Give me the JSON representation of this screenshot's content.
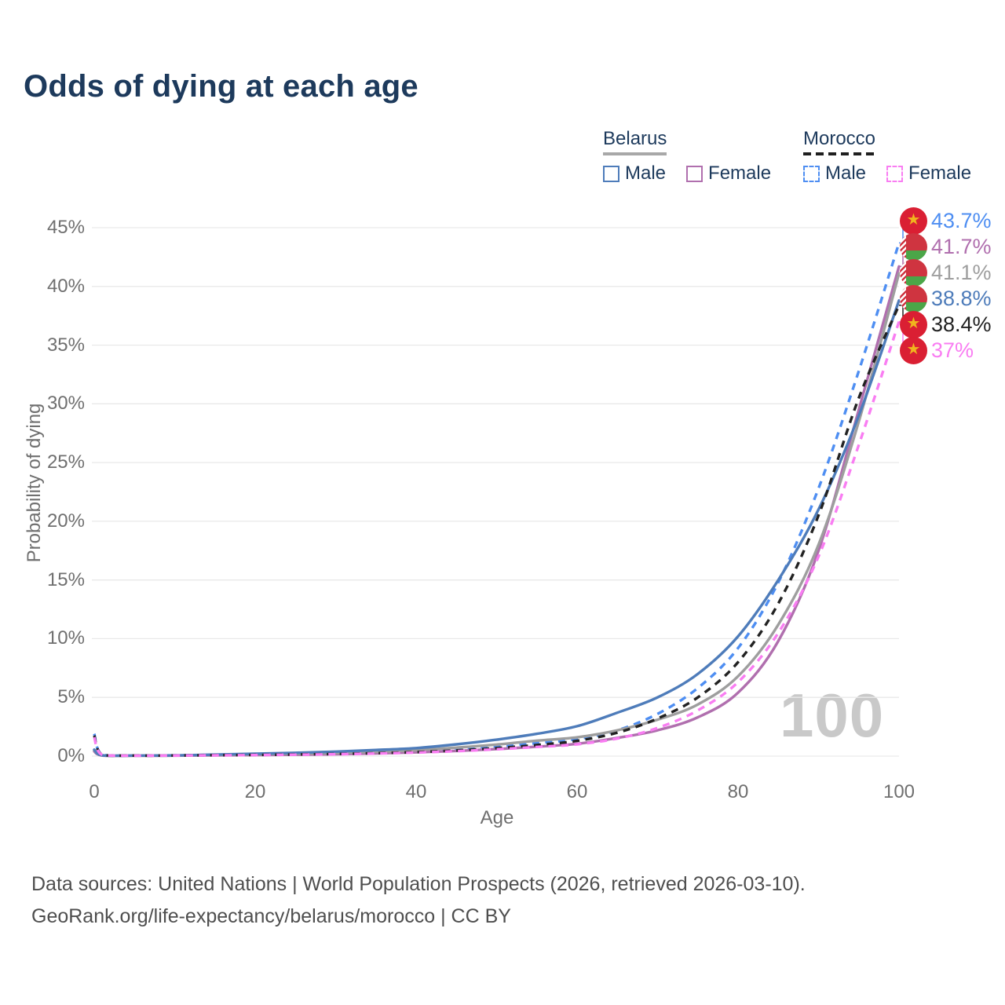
{
  "title": "Odds of dying at each age",
  "legend": {
    "groups": [
      {
        "name": "belarus",
        "label": "Belarus",
        "line_style": "solid",
        "header_line_color": "#a8a8a8",
        "items": [
          {
            "label": "Male",
            "color": "#4e7cba",
            "dash": false
          },
          {
            "label": "Female",
            "color": "#b06fae",
            "dash": false
          }
        ]
      },
      {
        "name": "morocco",
        "label": "Morocco",
        "line_style": "dashed",
        "header_line_color": "#1f1f1f",
        "items": [
          {
            "label": "Male",
            "color": "#4e8ef2",
            "dash": true
          },
          {
            "label": "Female",
            "color": "#f97df2",
            "dash": true
          }
        ]
      }
    ]
  },
  "axes": {
    "ylabel": "Probability of dying",
    "xlabel": "Age",
    "yticks": [
      "45%",
      "40%",
      "35%",
      "30%",
      "25%",
      "20%",
      "15%",
      "10%",
      "5%",
      "0%"
    ],
    "xticks": [
      "0",
      "20",
      "40",
      "60",
      "80",
      "100"
    ]
  },
  "watermark": "100",
  "chart_data": {
    "type": "line",
    "title": "Odds of dying at each age",
    "xlabel": "Age",
    "ylabel": "Probability of dying",
    "xlim": [
      0,
      100
    ],
    "ylim": [
      0,
      45
    ],
    "grid": "horizontal",
    "legend_position": "top-right",
    "x": [
      0,
      1,
      5,
      10,
      15,
      20,
      25,
      30,
      35,
      40,
      45,
      50,
      55,
      60,
      65,
      70,
      75,
      80,
      85,
      90,
      95,
      100
    ],
    "series": [
      {
        "name": "Morocco Male",
        "country": "morocco",
        "color": "#4e8ef2",
        "dash": true,
        "end_label": "43.7%",
        "values": [
          1.9,
          0.12,
          0.05,
          0.06,
          0.09,
          0.12,
          0.16,
          0.21,
          0.28,
          0.38,
          0.55,
          0.8,
          1.1,
          1.45,
          2.2,
          3.6,
          5.8,
          9.2,
          14.8,
          22.8,
          32.8,
          43.7
        ]
      },
      {
        "name": "Belarus Female",
        "country": "belarus",
        "color": "#b06fae",
        "dash": false,
        "end_label": "41.7%",
        "values": [
          0.4,
          0.05,
          0.03,
          0.04,
          0.06,
          0.09,
          0.12,
          0.17,
          0.23,
          0.32,
          0.44,
          0.6,
          0.8,
          1.05,
          1.55,
          2.2,
          3.3,
          5.4,
          9.8,
          17.5,
          29.5,
          41.7
        ]
      },
      {
        "name": "Belarus Both sexes",
        "country": "belarus",
        "color": "#9e9e9e",
        "dash": false,
        "end_label": "41.1%",
        "values": [
          0.5,
          0.06,
          0.04,
          0.05,
          0.1,
          0.15,
          0.2,
          0.27,
          0.36,
          0.5,
          0.72,
          0.98,
          1.32,
          1.6,
          2.2,
          3.1,
          4.4,
          6.8,
          11.2,
          18.0,
          28.5,
          41.1
        ]
      },
      {
        "name": "Belarus Male",
        "country": "belarus",
        "color": "#4e7cba",
        "dash": false,
        "end_label": "38.8%",
        "values": [
          0.55,
          0.07,
          0.05,
          0.06,
          0.13,
          0.2,
          0.28,
          0.38,
          0.52,
          0.68,
          1.0,
          1.4,
          1.9,
          2.55,
          3.7,
          5.0,
          7.0,
          10.2,
          15.0,
          21.0,
          29.0,
          38.8
        ]
      },
      {
        "name": "Morocco Both sexes",
        "country": "morocco",
        "color": "#222222",
        "dash": true,
        "end_label": "38.4%",
        "values": [
          1.75,
          0.11,
          0.045,
          0.055,
          0.08,
          0.1,
          0.14,
          0.18,
          0.25,
          0.34,
          0.48,
          0.68,
          0.95,
          1.3,
          2.0,
          3.2,
          5.0,
          8.0,
          13.0,
          20.5,
          30.5,
          38.4
        ]
      },
      {
        "name": "Morocco Female",
        "country": "morocco",
        "color": "#f97df2",
        "dash": true,
        "end_label": "37%",
        "values": [
          1.6,
          0.1,
          0.04,
          0.05,
          0.07,
          0.09,
          0.12,
          0.16,
          0.22,
          0.3,
          0.42,
          0.58,
          0.78,
          1.0,
          1.5,
          2.4,
          3.9,
          6.3,
          10.5,
          17.0,
          26.5,
          37.0
        ]
      }
    ]
  },
  "footer": {
    "line1": "Data sources: United Nations | World Population Prospects (2026, retrieved 2026-03-10).",
    "line2": "GeoRank.org/life-expectancy/belarus/morocco | CC BY"
  }
}
